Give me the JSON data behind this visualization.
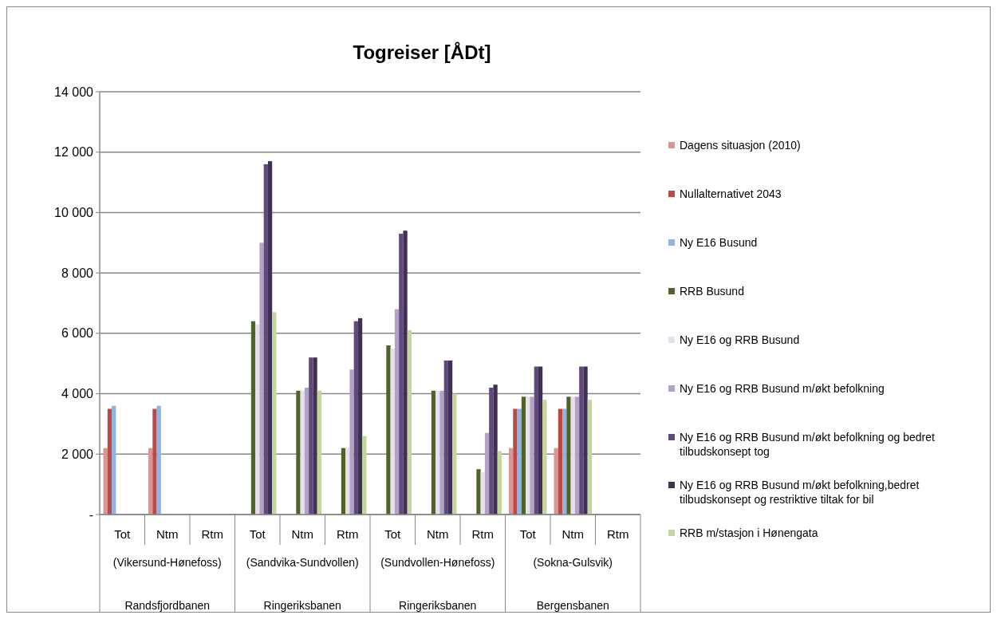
{
  "chart_data": {
    "type": "bar",
    "title": "Togreiser [ÅDt]",
    "categories": [
      "Tot",
      "Ntm",
      "Rtm",
      "Tot",
      "Ntm",
      "Rtm",
      "Tot",
      "Ntm",
      "Rtm",
      "Tot",
      "Ntm",
      "Rtm"
    ],
    "annotations": [
      "(Vikersund-Hønefoss)",
      "(Sandvika-Sundvollen)",
      "(Sundvollen-Hønefoss)",
      "(Sokna-Gulsvik)",
      "Randsfjordbanen",
      "Ringeriksbanen",
      "Ringeriksbanen",
      "Bergensbanen"
    ],
    "series": [
      {
        "name": "Dagens situasjon (2010)",
        "color": "#d99694",
        "values": [
          2200,
          2200,
          null,
          null,
          null,
          null,
          null,
          null,
          null,
          2200,
          2200,
          null
        ]
      },
      {
        "name": "Nullalternativet 2043",
        "color": "#b94a48",
        "values": [
          3500,
          3500,
          null,
          null,
          null,
          null,
          null,
          null,
          null,
          3500,
          3500,
          null
        ]
      },
      {
        "name": "Ny E16 Busund",
        "color": "#8eb4e3",
        "values": [
          3600,
          3600,
          null,
          null,
          null,
          null,
          null,
          null,
          null,
          3500,
          3500,
          null
        ]
      },
      {
        "name": "RRB Busund",
        "color": "#4f6228",
        "values": [
          null,
          null,
          null,
          6400,
          4100,
          2200,
          5600,
          4100,
          1500,
          3900,
          3900,
          null
        ]
      },
      {
        "name": "Ny E16 og RRB Busund",
        "color": "#e6e0ec",
        "values": [
          null,
          null,
          null,
          6300,
          4100,
          2200,
          5500,
          4100,
          1400,
          3900,
          3900,
          null
        ]
      },
      {
        "name": "Ny E16 og RRB Busund m/økt befolkning",
        "color": "#b3a2c7",
        "values": [
          null,
          null,
          null,
          9000,
          4200,
          4800,
          6800,
          4100,
          2700,
          3900,
          3900,
          null
        ]
      },
      {
        "name": "Ny E16 og RRB Busund m/økt befolkning og bedret tilbudskonsept tog",
        "color": "#604a7b",
        "values": [
          null,
          null,
          null,
          11600,
          5200,
          6400,
          9300,
          5100,
          4200,
          4900,
          4900,
          null
        ]
      },
      {
        "name": "Ny E16 og RRB Busund m/økt befolkning,bedret tilbudskonsept og restriktive tiltak for bil",
        "color": "#403152",
        "values": [
          null,
          null,
          null,
          11700,
          5200,
          6500,
          9400,
          5100,
          4300,
          4900,
          4900,
          null
        ]
      },
      {
        "name": "RRB m/stasjon i Hønengata",
        "color": "#c3d69b",
        "values": [
          null,
          null,
          null,
          6700,
          4100,
          2600,
          6100,
          4000,
          2100,
          3800,
          3800,
          null
        ]
      }
    ],
    "ylim": [
      0,
      14000
    ],
    "yticks": [
      {
        "value": 0,
        "label": "-"
      },
      {
        "value": 2000,
        "label": "2 000"
      },
      {
        "value": 4000,
        "label": "4 000"
      },
      {
        "value": 6000,
        "label": "6 000"
      },
      {
        "value": 8000,
        "label": "8 000"
      },
      {
        "value": 10000,
        "label": "10 000"
      },
      {
        "value": 12000,
        "label": "12 000"
      },
      {
        "value": 14000,
        "label": "14 000"
      }
    ],
    "grid": "y",
    "legend": "right"
  }
}
